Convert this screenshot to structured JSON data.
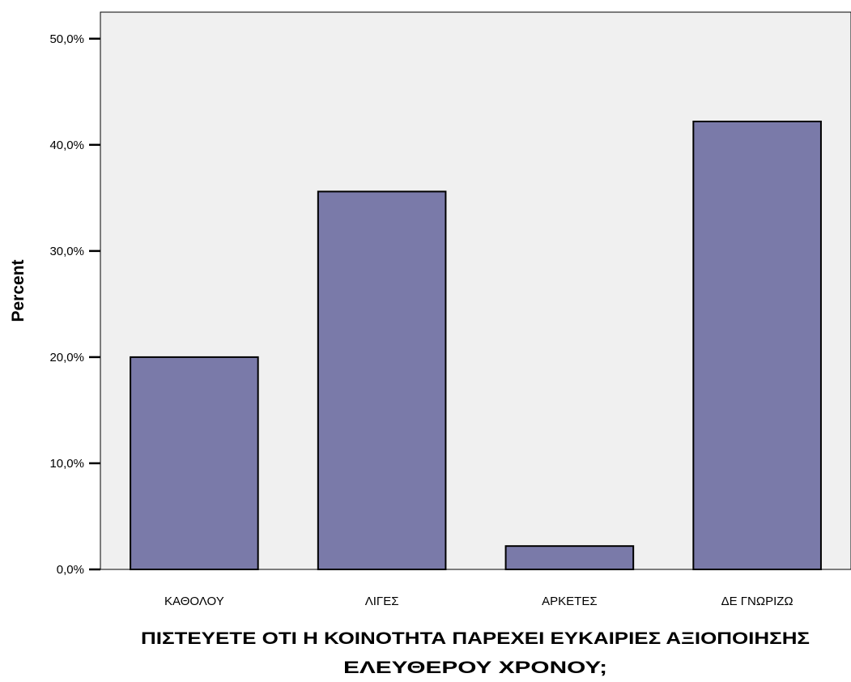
{
  "chart_data": {
    "type": "bar",
    "categories": [
      "ΚΑΘΟΛΟΥ",
      "ΛΙΓΕΣ",
      "ΑΡΚΕΤΕΣ",
      "ΔΕ ΓΝΩΡΙΖΩ"
    ],
    "values": [
      20.0,
      35.6,
      2.2,
      42.2
    ],
    "title": "",
    "xlabel": "ΠΙΣΤΕΥΕΤΕ ΟΤΙ Η ΚΟΙΝΟΤΗΤΑ ΠΑΡΕΧΕΙ ΕΥΚΑΙΡΙΕΣ ΑΞΙΟΠΟΙΗΣΗΣ ΕΛΕΥΘΕΡΟΥ ΧΡΟΝΟΥ;",
    "xlabel_lines": [
      "ΠΙΣΤΕΥΕΤΕ ΟΤΙ Η ΚΟΙΝΟΤΗΤΑ ΠΑΡΕΧΕΙ ΕΥΚΑΙΡΙΕΣ ΑΞΙΟΠΟΙΗΣΗΣ",
      "ΕΛΕΥΘΕΡΟΥ ΧΡΟΝΟΥ;"
    ],
    "ylabel": "Percent",
    "ylim": [
      0,
      52.5
    ],
    "yticks": [
      0,
      10,
      20,
      30,
      40,
      50
    ],
    "ytick_labels": [
      "0,0%",
      "10,0%",
      "20,0%",
      "30,0%",
      "40,0%",
      "50,0%"
    ],
    "grid": false,
    "colors": {
      "bar_fill": "#7a7aa9",
      "bar_stroke": "#000000",
      "plot_background": "#f0f0f0",
      "page_background": "#ffffff"
    }
  }
}
